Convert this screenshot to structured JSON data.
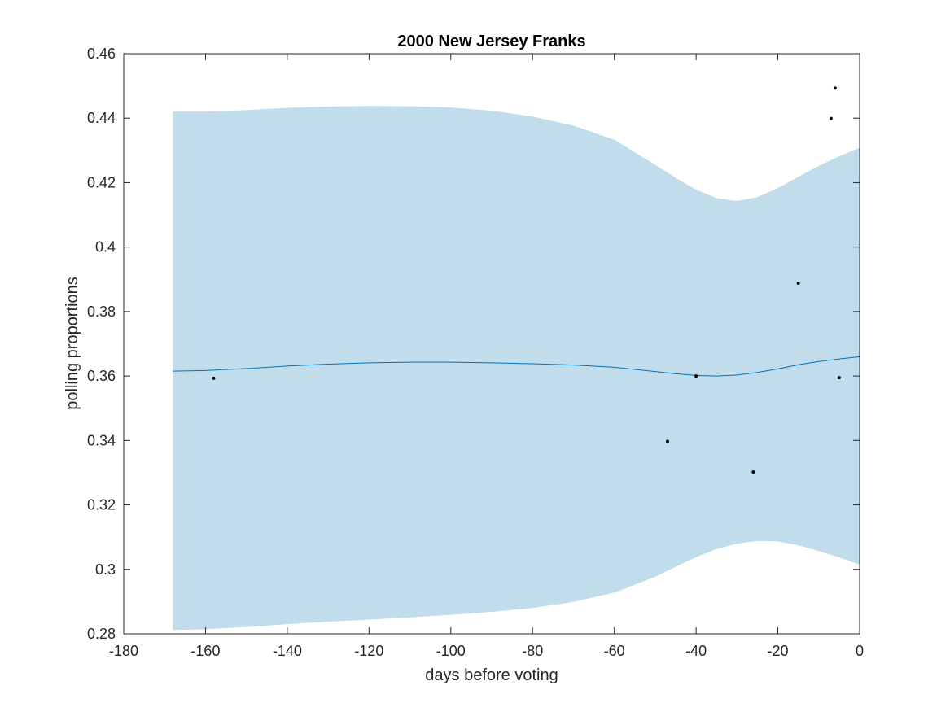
{
  "colors": {
    "band": "#c1dcea",
    "mean_line": "#0072bd",
    "points": "#000000",
    "axes": "#262626",
    "background": "#ffffff"
  },
  "chart_data": {
    "type": "line",
    "title": "2000 New Jersey Franks",
    "xlabel": "days before voting",
    "ylabel": "polling proportions",
    "xlim": [
      -180,
      0
    ],
    "ylim": [
      0.28,
      0.46
    ],
    "xticks": [
      -180,
      -160,
      -140,
      -120,
      -100,
      -80,
      -60,
      -40,
      -20,
      0
    ],
    "yticks": [
      0.28,
      0.3,
      0.32,
      0.34,
      0.36,
      0.38,
      0.4,
      0.42,
      0.44,
      0.46
    ],
    "xtick_labels": [
      "-180",
      "-160",
      "-140",
      "-120",
      "-100",
      "-80",
      "-60",
      "-40",
      "-20",
      "0"
    ],
    "ytick_labels": [
      "0.28",
      "0.3",
      "0.32",
      "0.34",
      "0.36",
      "0.38",
      "0.4",
      "0.42",
      "0.44",
      "0.46"
    ],
    "grid": false,
    "box": true,
    "band": {
      "x": [
        -168,
        -160,
        -150,
        -140,
        -130,
        -120,
        -110,
        -100,
        -90,
        -80,
        -70,
        -60,
        -50,
        -45,
        -40,
        -35,
        -30,
        -25,
        -20,
        -15,
        -10,
        -5,
        0
      ],
      "upper": [
        0.442,
        0.442,
        0.4425,
        0.4432,
        0.4436,
        0.4438,
        0.4437,
        0.4433,
        0.4423,
        0.4405,
        0.4377,
        0.4333,
        0.4255,
        0.4215,
        0.4178,
        0.4152,
        0.4143,
        0.4155,
        0.4183,
        0.4218,
        0.4252,
        0.4282,
        0.4308
      ],
      "lower": [
        0.2812,
        0.2814,
        0.2821,
        0.283,
        0.2838,
        0.2844,
        0.2851,
        0.2859,
        0.2868,
        0.288,
        0.2899,
        0.2928,
        0.2977,
        0.3008,
        0.3038,
        0.3063,
        0.308,
        0.3088,
        0.3087,
        0.3075,
        0.3057,
        0.3037,
        0.3015
      ]
    },
    "mean_line": {
      "x": [
        -168,
        -160,
        -150,
        -140,
        -130,
        -120,
        -110,
        -100,
        -90,
        -80,
        -70,
        -60,
        -50,
        -45,
        -40,
        -35,
        -30,
        -25,
        -20,
        -15,
        -10,
        -5,
        0
      ],
      "y": [
        0.3615,
        0.3617,
        0.3623,
        0.3631,
        0.3637,
        0.3641,
        0.3643,
        0.3643,
        0.3641,
        0.3638,
        0.3634,
        0.3627,
        0.3614,
        0.3607,
        0.3602,
        0.36,
        0.3603,
        0.3611,
        0.3622,
        0.3635,
        0.3645,
        0.3653,
        0.366
      ]
    },
    "points": {
      "x": [
        -158,
        -47,
        -40,
        -26,
        -15,
        -7,
        -6,
        -5
      ],
      "y": [
        0.3593,
        0.3397,
        0.36,
        0.3302,
        0.3888,
        0.4399,
        0.4493,
        0.3595
      ]
    }
  }
}
